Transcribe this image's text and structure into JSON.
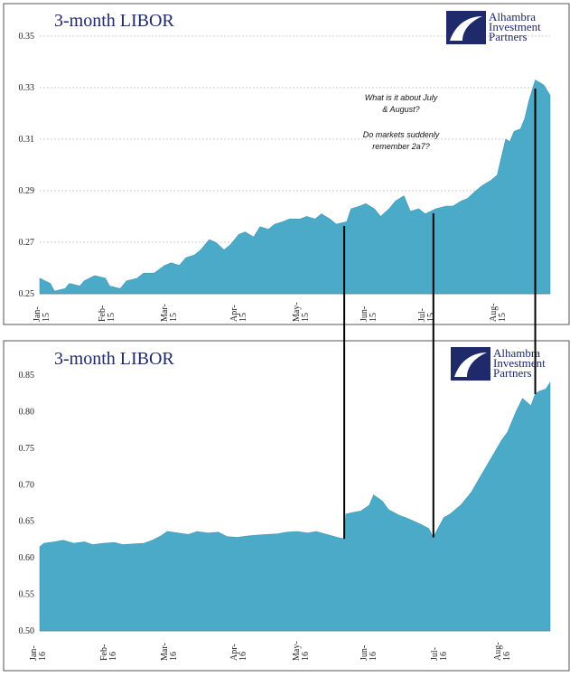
{
  "chart_data": [
    {
      "type": "area",
      "title": "3-month LIBOR",
      "logo_text": [
        "Alhambra",
        "Investment",
        "Partners"
      ],
      "ylim": [
        0.25,
        0.35
      ],
      "yticks": [
        "0.25",
        "0.27",
        "0.29",
        "0.31",
        "0.33",
        "0.35"
      ],
      "grid": true,
      "x_tick_labels": [
        {
          "month": "Jan-",
          "year": "15"
        },
        {
          "month": "Feb-",
          "year": "15"
        },
        {
          "month": "Mar-",
          "year": "15"
        },
        {
          "month": "Apr-",
          "year": "15"
        },
        {
          "month": "May-",
          "year": "15"
        },
        {
          "month": "Jun-",
          "year": "15"
        },
        {
          "month": "Jul-",
          "year": "15"
        },
        {
          "month": "Aug-",
          "year": "15"
        }
      ],
      "x_start": "2015-01-02",
      "x_end": "2015-08-31",
      "points": [
        [
          "2015-01-02",
          0.256
        ],
        [
          "2015-01-07",
          0.254
        ],
        [
          "2015-01-09",
          0.251
        ],
        [
          "2015-01-14",
          0.252
        ],
        [
          "2015-01-16",
          0.254
        ],
        [
          "2015-01-21",
          0.253
        ],
        [
          "2015-01-23",
          0.255
        ],
        [
          "2015-01-28",
          0.257
        ],
        [
          "2015-02-02",
          0.256
        ],
        [
          "2015-02-04",
          0.253
        ],
        [
          "2015-02-09",
          0.252
        ],
        [
          "2015-02-12",
          0.255
        ],
        [
          "2015-02-17",
          0.256
        ],
        [
          "2015-02-20",
          0.258
        ],
        [
          "2015-02-25",
          0.258
        ],
        [
          "2015-03-02",
          0.261
        ],
        [
          "2015-03-05",
          0.262
        ],
        [
          "2015-03-09",
          0.261
        ],
        [
          "2015-03-12",
          0.264
        ],
        [
          "2015-03-16",
          0.265
        ],
        [
          "2015-03-19",
          0.267
        ],
        [
          "2015-03-23",
          0.271
        ],
        [
          "2015-03-26",
          0.27
        ],
        [
          "2015-03-30",
          0.267
        ],
        [
          "2015-04-02",
          0.269
        ],
        [
          "2015-04-06",
          0.273
        ],
        [
          "2015-04-09",
          0.274
        ],
        [
          "2015-04-13",
          0.272
        ],
        [
          "2015-04-16",
          0.276
        ],
        [
          "2015-04-20",
          0.275
        ],
        [
          "2015-04-23",
          0.277
        ],
        [
          "2015-04-27",
          0.278
        ],
        [
          "2015-04-30",
          0.279
        ],
        [
          "2015-05-05",
          0.279
        ],
        [
          "2015-05-08",
          0.28
        ],
        [
          "2015-05-12",
          0.279
        ],
        [
          "2015-05-15",
          0.281
        ],
        [
          "2015-05-19",
          0.279
        ],
        [
          "2015-05-22",
          0.277
        ],
        [
          "2015-05-27",
          0.278
        ],
        [
          "2015-05-29",
          0.283
        ],
        [
          "2015-06-02",
          0.284
        ],
        [
          "2015-06-05",
          0.285
        ],
        [
          "2015-06-09",
          0.283
        ],
        [
          "2015-06-12",
          0.28
        ],
        [
          "2015-06-16",
          0.283
        ],
        [
          "2015-06-19",
          0.286
        ],
        [
          "2015-06-23",
          0.288
        ],
        [
          "2015-06-26",
          0.282
        ],
        [
          "2015-06-30",
          0.283
        ],
        [
          "2015-07-03",
          0.281
        ],
        [
          "2015-07-08",
          0.283
        ],
        [
          "2015-07-13",
          0.284
        ],
        [
          "2015-07-16",
          0.284
        ],
        [
          "2015-07-20",
          0.286
        ],
        [
          "2015-07-23",
          0.287
        ],
        [
          "2015-07-27",
          0.29
        ],
        [
          "2015-07-30",
          0.292
        ],
        [
          "2015-08-03",
          0.294
        ],
        [
          "2015-08-06",
          0.296
        ],
        [
          "2015-08-10",
          0.31
        ],
        [
          "2015-08-12",
          0.309
        ],
        [
          "2015-08-14",
          0.313
        ],
        [
          "2015-08-17",
          0.314
        ],
        [
          "2015-08-19",
          0.318
        ],
        [
          "2015-08-21",
          0.325
        ],
        [
          "2015-08-24",
          0.333
        ],
        [
          "2015-08-26",
          0.332
        ],
        [
          "2015-08-28",
          0.331
        ],
        [
          "2015-08-31",
          0.327
        ]
      ],
      "annotations": [
        "What is it about July",
        "& August?",
        "Do markets suddenly",
        "remember 2a7?"
      ]
    },
    {
      "type": "area",
      "title": "3-month LIBOR",
      "logo_text": [
        "Alhambra",
        "Investment",
        "Partners"
      ],
      "ylim": [
        0.5,
        0.85
      ],
      "yticks": [
        "0.50",
        "0.55",
        "0.60",
        "0.65",
        "0.70",
        "0.75",
        "0.80",
        "0.85"
      ],
      "grid": false,
      "x_tick_labels": [
        {
          "month": "Jan-",
          "year": "16"
        },
        {
          "month": "Feb-",
          "year": "16"
        },
        {
          "month": "Mar-",
          "year": "16"
        },
        {
          "month": "Apr-",
          "year": "16"
        },
        {
          "month": "May-",
          "year": "16"
        },
        {
          "month": "Jun-",
          "year": "16"
        },
        {
          "month": "Jul-",
          "year": "16"
        },
        {
          "month": "Aug-",
          "year": "16"
        }
      ],
      "x_start": "2016-01-04",
      "x_end": "2016-08-31",
      "points": [
        [
          "2016-01-04",
          0.615
        ],
        [
          "2016-01-06",
          0.62
        ],
        [
          "2016-01-11",
          0.622
        ],
        [
          "2016-01-15",
          0.624
        ],
        [
          "2016-01-20",
          0.62
        ],
        [
          "2016-01-25",
          0.622
        ],
        [
          "2016-01-29",
          0.618
        ],
        [
          "2016-02-03",
          0.62
        ],
        [
          "2016-02-08",
          0.621
        ],
        [
          "2016-02-12",
          0.618
        ],
        [
          "2016-02-17",
          0.619
        ],
        [
          "2016-02-22",
          0.62
        ],
        [
          "2016-02-26",
          0.624
        ],
        [
          "2016-03-01",
          0.63
        ],
        [
          "2016-03-04",
          0.636
        ],
        [
          "2016-03-09",
          0.634
        ],
        [
          "2016-03-14",
          0.632
        ],
        [
          "2016-03-18",
          0.636
        ],
        [
          "2016-03-23",
          0.634
        ],
        [
          "2016-03-28",
          0.635
        ],
        [
          "2016-04-01",
          0.629
        ],
        [
          "2016-04-06",
          0.628
        ],
        [
          "2016-04-11",
          0.63
        ],
        [
          "2016-04-15",
          0.631
        ],
        [
          "2016-04-20",
          0.632
        ],
        [
          "2016-04-25",
          0.633
        ],
        [
          "2016-04-29",
          0.635
        ],
        [
          "2016-05-04",
          0.636
        ],
        [
          "2016-05-09",
          0.634
        ],
        [
          "2016-05-13",
          0.636
        ],
        [
          "2016-05-18",
          0.632
        ],
        [
          "2016-05-23",
          0.628
        ],
        [
          "2016-05-26",
          0.626
        ],
        [
          "2016-05-27",
          0.66
        ],
        [
          "2016-06-01",
          0.663
        ],
        [
          "2016-06-03",
          0.664
        ],
        [
          "2016-06-07",
          0.672
        ],
        [
          "2016-06-09",
          0.686
        ],
        [
          "2016-06-13",
          0.678
        ],
        [
          "2016-06-16",
          0.666
        ],
        [
          "2016-06-21",
          0.658
        ],
        [
          "2016-06-24",
          0.655
        ],
        [
          "2016-06-28",
          0.65
        ],
        [
          "2016-07-01",
          0.646
        ],
        [
          "2016-07-05",
          0.64
        ],
        [
          "2016-07-07",
          0.628
        ],
        [
          "2016-07-12",
          0.655
        ],
        [
          "2016-07-15",
          0.66
        ],
        [
          "2016-07-20",
          0.672
        ],
        [
          "2016-07-25",
          0.69
        ],
        [
          "2016-07-29",
          0.71
        ],
        [
          "2016-08-03",
          0.735
        ],
        [
          "2016-08-08",
          0.76
        ],
        [
          "2016-08-11",
          0.772
        ],
        [
          "2016-08-15",
          0.8
        ],
        [
          "2016-08-18",
          0.818
        ],
        [
          "2016-08-22",
          0.808
        ],
        [
          "2016-08-24",
          0.824
        ],
        [
          "2016-08-26",
          0.828
        ],
        [
          "2016-08-29",
          0.831
        ],
        [
          "2016-08-31",
          0.84
        ]
      ]
    }
  ],
  "colors": {
    "area_fill": "#4aaac8",
    "title": "#1f2a6b",
    "grid": "#bdbdbd",
    "frame": "#555555",
    "connector": "#000000"
  },
  "connector_dates": [
    "05-26",
    "07-07",
    "08-24"
  ]
}
